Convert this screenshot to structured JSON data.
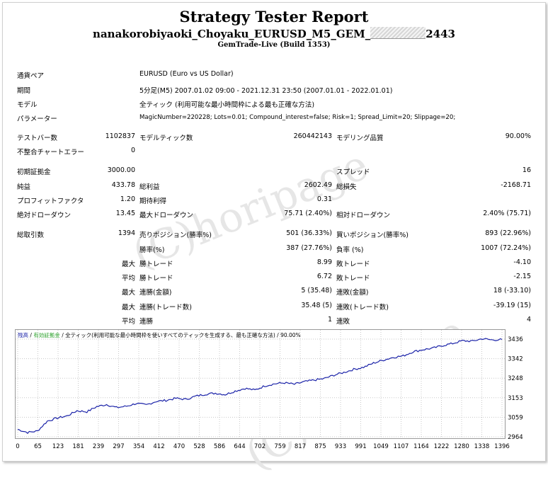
{
  "report": {
    "title": "Strategy Tester Report",
    "name_prefix": "nanakorobiyaoki_Choyaku_EURUSD_M5_GEM_",
    "name_suffix": "2443",
    "server": "GemTrade-Live (Build 1353)"
  },
  "watermark": "(C)horipage",
  "info": [
    {
      "label": "通貨ペア",
      "value": "EURUSD (Euro vs US Dollar)"
    },
    {
      "label": "期間",
      "value": "5分足(M5) 2007.01.02 09:00 - 2021.12.31 23:50 (2007.01.01 - 2022.01.01)"
    },
    {
      "label": "モデル",
      "value": "全ティック (利用可能な最小時間枠による最も正確な方法)"
    },
    {
      "label": "パラメーター",
      "value": "MagicNumber=220228; Lots=0.01; Compound_interest=false; Risk=1; Spread_Limit=20; Slippage=20;"
    }
  ],
  "stats": {
    "bars_label": "テストバー数",
    "bars": "1102837",
    "ticks_label": "モデルティック数",
    "ticks": "260442143",
    "quality_label": "モデリング品質",
    "quality": "90.00%",
    "mismatch_label": "不整合チャートエラー",
    "mismatch": "0",
    "deposit_label": "初期証拠金",
    "deposit": "3000.00",
    "spread_label": "スプレッド",
    "spread": "16",
    "net_label": "純益",
    "net": "433.78",
    "gross_profit_label": "総利益",
    "gross_profit": "2602.49",
    "gross_loss_label": "総損失",
    "gross_loss": "-2168.71",
    "pf_label": "プロフィットファクタ",
    "pf": "1.20",
    "expected_label": "期待利得",
    "expected": "0.31",
    "abs_dd_label": "絶対ドローダウン",
    "abs_dd": "13.45",
    "max_dd_label": "最大ドローダウン",
    "max_dd": "75.71 (2.40%)",
    "rel_dd_label": "相対ドローダウン",
    "rel_dd": "2.40% (75.71)",
    "trades_label": "総取引数",
    "trades": "1394",
    "short_label": "売りポジション(勝率%)",
    "short": "501 (36.33%)",
    "long_label": "買いポジション(勝率%)",
    "long": "893 (22.96%)",
    "win_label": "勝率(%)",
    "win": "387 (27.76%)",
    "loss_label": "負率 (%)",
    "loss": "1007 (72.24%)",
    "max_word": "最大",
    "avg_word": "平均",
    "max_win_label": "勝トレード",
    "max_win": "8.99",
    "max_loss_label": "敗トレード",
    "max_loss": "-4.10",
    "avg_win_label": "勝トレード",
    "avg_win": "6.72",
    "avg_loss_label": "敗トレード",
    "avg_loss": "-2.15",
    "cons_win_amt_label": "連勝(金額)",
    "cons_win_amt": "5 (35.48)",
    "cons_loss_amt_label": "連敗(金額)",
    "cons_loss_amt": "18 (-33.10)",
    "cons_win_cnt_label": "連勝(トレード数)",
    "cons_win_cnt": "35.48 (5)",
    "cons_loss_cnt_label": "連敗(トレード数)",
    "cons_loss_cnt": "-39.19 (15)",
    "avg_cons_win_label": "連勝",
    "avg_cons_win": "1",
    "avg_cons_loss_label": "連敗",
    "avg_cons_loss": "4"
  },
  "chart_legend": {
    "balance": "残高",
    "equity": "有効証拠金",
    "model": "全ティック(利用可能な最小時間枠を使いすべてのティックを生成する、最も正確な方法)",
    "quality": "90.00%",
    "sep": "/"
  },
  "colors": {
    "balance": "#1a22a8",
    "equity": "#2aa02a",
    "grid": "#c8c8c8"
  },
  "chart_data": {
    "type": "line",
    "series": [
      {
        "name": "残高",
        "values": [
          3000,
          2985,
          2992,
          3040,
          3055,
          3065,
          3090,
          3085,
          3110,
          3120,
          3105,
          3112,
          3125,
          3118,
          3135,
          3140,
          3150,
          3145,
          3160,
          3170,
          3175,
          3168,
          3185,
          3198,
          3190,
          3210,
          3220,
          3225,
          3218,
          3230,
          3238,
          3245,
          3262,
          3275,
          3290,
          3300,
          3320,
          3335,
          3348,
          3355,
          3375,
          3385,
          3392,
          3405,
          3415,
          3428,
          3426,
          3438,
          3432,
          3434
        ]
      }
    ],
    "x_ticks": [
      "0",
      "65",
      "123",
      "181",
      "239",
      "297",
      "354",
      "412",
      "470",
      "528",
      "586",
      "644",
      "702",
      "759",
      "817",
      "875",
      "933",
      "991",
      "1049",
      "1107",
      "1164",
      "1222",
      "1280",
      "1338",
      "1396"
    ],
    "y_ticks": [
      "3436",
      "3342",
      "3248",
      "3153",
      "3059",
      "2964"
    ],
    "ylim": [
      2964,
      3436
    ]
  }
}
